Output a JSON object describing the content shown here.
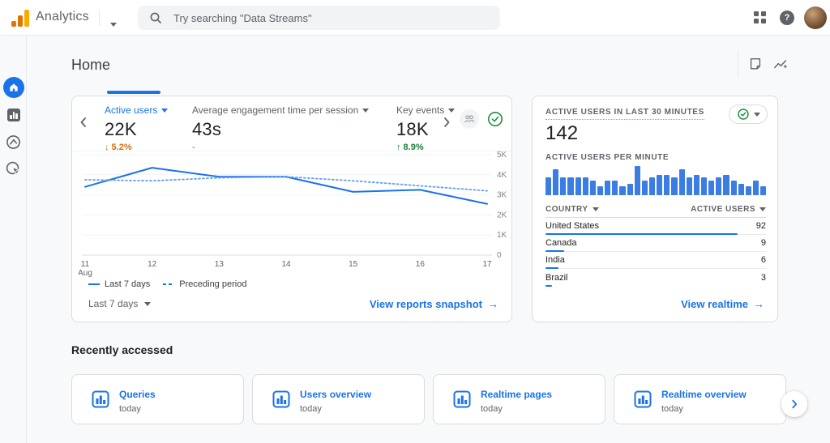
{
  "colors": {
    "accent": "#1a73e8",
    "solid_line": "#1a73e8",
    "dashed_line": "#669df6",
    "minute_bar": "#3b7de2",
    "country_bar": "#1a73e8",
    "positive": "#188038",
    "negative": "#d56e0c",
    "grid": "#f1f3f4",
    "axis": "#dadce0",
    "tick_text": "#80868b"
  },
  "topbar": {
    "app_name": "Analytics",
    "search_placeholder": "Try searching \"Data Streams\"",
    "help_glyph": "?"
  },
  "sidebar": {
    "items": [
      {
        "name": "home",
        "selected": true
      },
      {
        "name": "reports",
        "selected": false
      },
      {
        "name": "explore",
        "selected": false
      },
      {
        "name": "advertising",
        "selected": false
      }
    ]
  },
  "page": {
    "title": "Home"
  },
  "overview_card": {
    "metrics": [
      {
        "label": "Active users",
        "value": "22K",
        "delta": "5.2%",
        "direction": "down",
        "selected": true
      },
      {
        "label": "Average engagement time per session",
        "value": "43s",
        "delta": "-",
        "direction": "none",
        "selected": false
      },
      {
        "label": "Key events",
        "value": "18K",
        "delta": "8.9%",
        "direction": "up",
        "selected": false
      }
    ],
    "chart_data": {
      "type": "line",
      "x": [
        "11",
        "12",
        "13",
        "14",
        "15",
        "16",
        "17"
      ],
      "x_sublabel": "Aug",
      "series": [
        {
          "name": "Last 7 days",
          "style": "solid",
          "values": [
            3400,
            4350,
            3900,
            3900,
            3150,
            3250,
            2550
          ]
        },
        {
          "name": "Preceding period",
          "style": "dashed",
          "values": [
            3750,
            3700,
            3850,
            3900,
            3700,
            3450,
            3200
          ]
        }
      ],
      "ylim": [
        0,
        5000
      ],
      "yticks": [
        "0",
        "1K",
        "2K",
        "3K",
        "4K",
        "5K"
      ],
      "grid": "horizontal",
      "legend_position": "bottom-left"
    },
    "range_label": "Last 7 days",
    "link_label": "View reports snapshot",
    "arrow": "→"
  },
  "realtime_card": {
    "title": "ACTIVE USERS IN LAST 30 MINUTES",
    "value": "142",
    "per_minute_label": "ACTIVE USERS PER MINUTE",
    "chart_data": {
      "type": "bar",
      "title": "Active users per minute",
      "values": [
        6,
        9,
        6,
        6,
        6,
        6,
        5,
        3,
        5,
        5,
        3,
        4,
        10,
        5,
        6,
        7,
        7,
        6,
        9,
        6,
        7,
        6,
        5,
        6,
        7,
        5,
        4,
        3,
        5,
        3
      ]
    },
    "table": {
      "columns": [
        "COUNTRY",
        "ACTIVE USERS"
      ],
      "rows": [
        {
          "country": "United States",
          "value": 92
        },
        {
          "country": "Canada",
          "value": 9
        },
        {
          "country": "India",
          "value": 6
        },
        {
          "country": "Brazil",
          "value": 3
        }
      ]
    },
    "link_label": "View realtime",
    "arrow": "→"
  },
  "recent": {
    "title": "Recently accessed",
    "cards": [
      {
        "title": "Queries",
        "subtitle": "today"
      },
      {
        "title": "Users overview",
        "subtitle": "today"
      },
      {
        "title": "Realtime pages",
        "subtitle": "today"
      },
      {
        "title": "Realtime overview",
        "subtitle": "today"
      }
    ]
  }
}
